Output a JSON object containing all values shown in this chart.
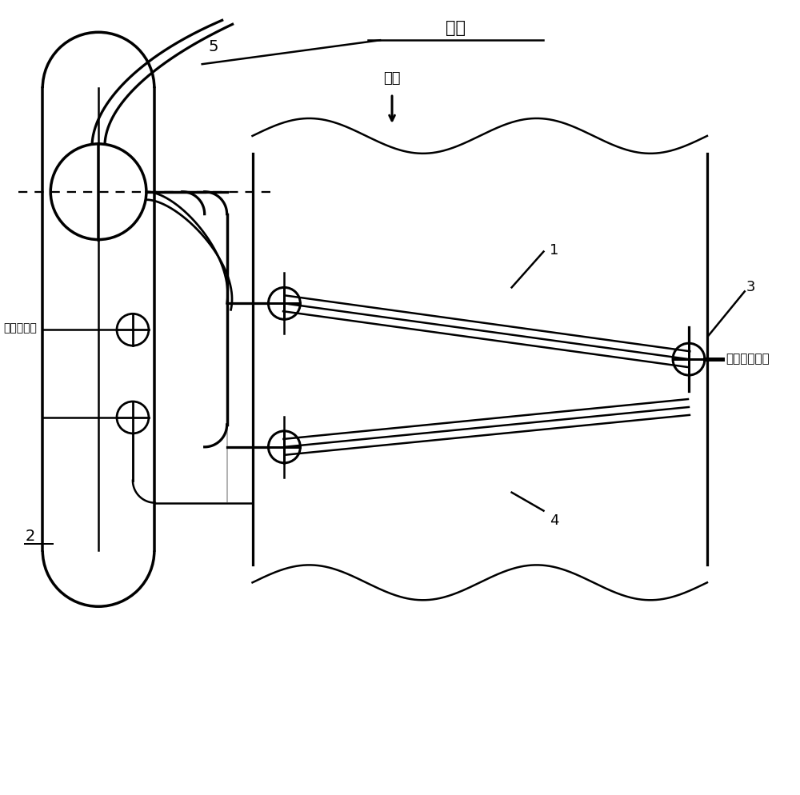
{
  "bg_color": "#ffffff",
  "line_color": "#000000",
  "lw": 1.8,
  "labels": {
    "qibao": "汽包",
    "wuliao": "物料",
    "zhu_steam_out": "主蝑汽出口",
    "ext_steam_in": "外来蝑汽入口",
    "n1": "1",
    "n2": "2",
    "n3": "3",
    "n4": "4",
    "n5": "5"
  }
}
